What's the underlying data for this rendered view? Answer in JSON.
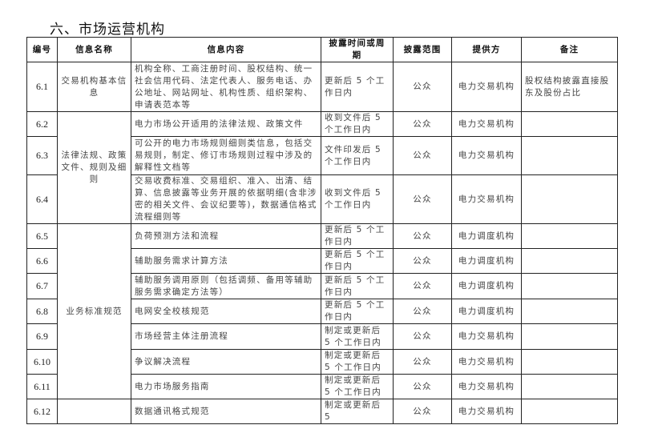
{
  "title": "六、市场运营机构",
  "headers": [
    "编号",
    "信息名称",
    "信息内容",
    "披露时间或周期",
    "披露范围",
    "提供方",
    "备注"
  ],
  "rows": [
    {
      "id": "6.1",
      "name": "交易机构基本信息",
      "content": "机构全称、工商注册时间、股权结构、统一社会信用代码、法定代表人、服务电话、办公地址、网站网址、机构性质、组织架构、申请表范本等",
      "period": "更新后 5 个工作日内",
      "scope": "公众",
      "provider": "电力交易机构",
      "note": "股权结构披露直接股东及股份占比"
    },
    {
      "id": "6.2",
      "name": "法律法规、政策文件、规则及细则",
      "content": "电力市场公开适用的法律法规、政策文件",
      "period": "收到文件后 5 个工作日内",
      "scope": "公众",
      "provider": "电力交易机构",
      "note": ""
    },
    {
      "id": "6.3",
      "content": "可公开的电力市场规则细则类信息，包括交易规则，制定、修订市场规则过程中涉及的解释性文档等",
      "period": "文件印发后 5 个工作日内",
      "scope": "公众",
      "provider": "电力交易机构",
      "note": ""
    },
    {
      "id": "6.4",
      "content": "交易收费标准、交易组织、准入、出清、结算、信息披露等业务开展的依据明细(含非涉密的相关文件、会议纪要等)，数据通信格式流程细则等",
      "period": "收到文件后 5 个工作日内",
      "scope": "公众",
      "provider": "电力交易机构",
      "note": ""
    },
    {
      "id": "6.5",
      "name": "业务标准规范",
      "content": "负荷预测方法和流程",
      "period": "更新后 5 个工作日内",
      "scope": "公众",
      "provider": "电力调度机构",
      "note": ""
    },
    {
      "id": "6.6",
      "content": "辅助服务需求计算方法",
      "period": "更新后 5 个工作日内",
      "scope": "公众",
      "provider": "电力调度机构",
      "note": ""
    },
    {
      "id": "6.7",
      "content": "辅助服务调用原则（包括调频、备用等辅助服务需求确定方法等）",
      "period": "更新后 5 个工作日内",
      "scope": "公众",
      "provider": "电力调度机构",
      "note": ""
    },
    {
      "id": "6.8",
      "content": "电网安全校核规范",
      "period": "更新后 5 个工作日内",
      "scope": "公众",
      "provider": "电力调度机构",
      "note": ""
    },
    {
      "id": "6.9",
      "content": "市场经营主体注册流程",
      "period": "制定或更新后 5 个工作日内",
      "scope": "公众",
      "provider": "电力交易机构",
      "note": ""
    },
    {
      "id": "6.10",
      "content": "争议解决流程",
      "period": "制定或更新后 5 个工作日内",
      "scope": "公众",
      "provider": "电力交易机构",
      "note": ""
    },
    {
      "id": "6.11",
      "content": "电力市场服务指南",
      "period": "制定或更新后 5 个工作日内",
      "scope": "公众",
      "provider": "电力交易机构",
      "note": ""
    },
    {
      "id": "6.12",
      "name": "",
      "content": "数据通讯格式规范",
      "period": "制定或更新后 5",
      "scope": "公众",
      "provider": "电力交易机构",
      "note": ""
    }
  ]
}
